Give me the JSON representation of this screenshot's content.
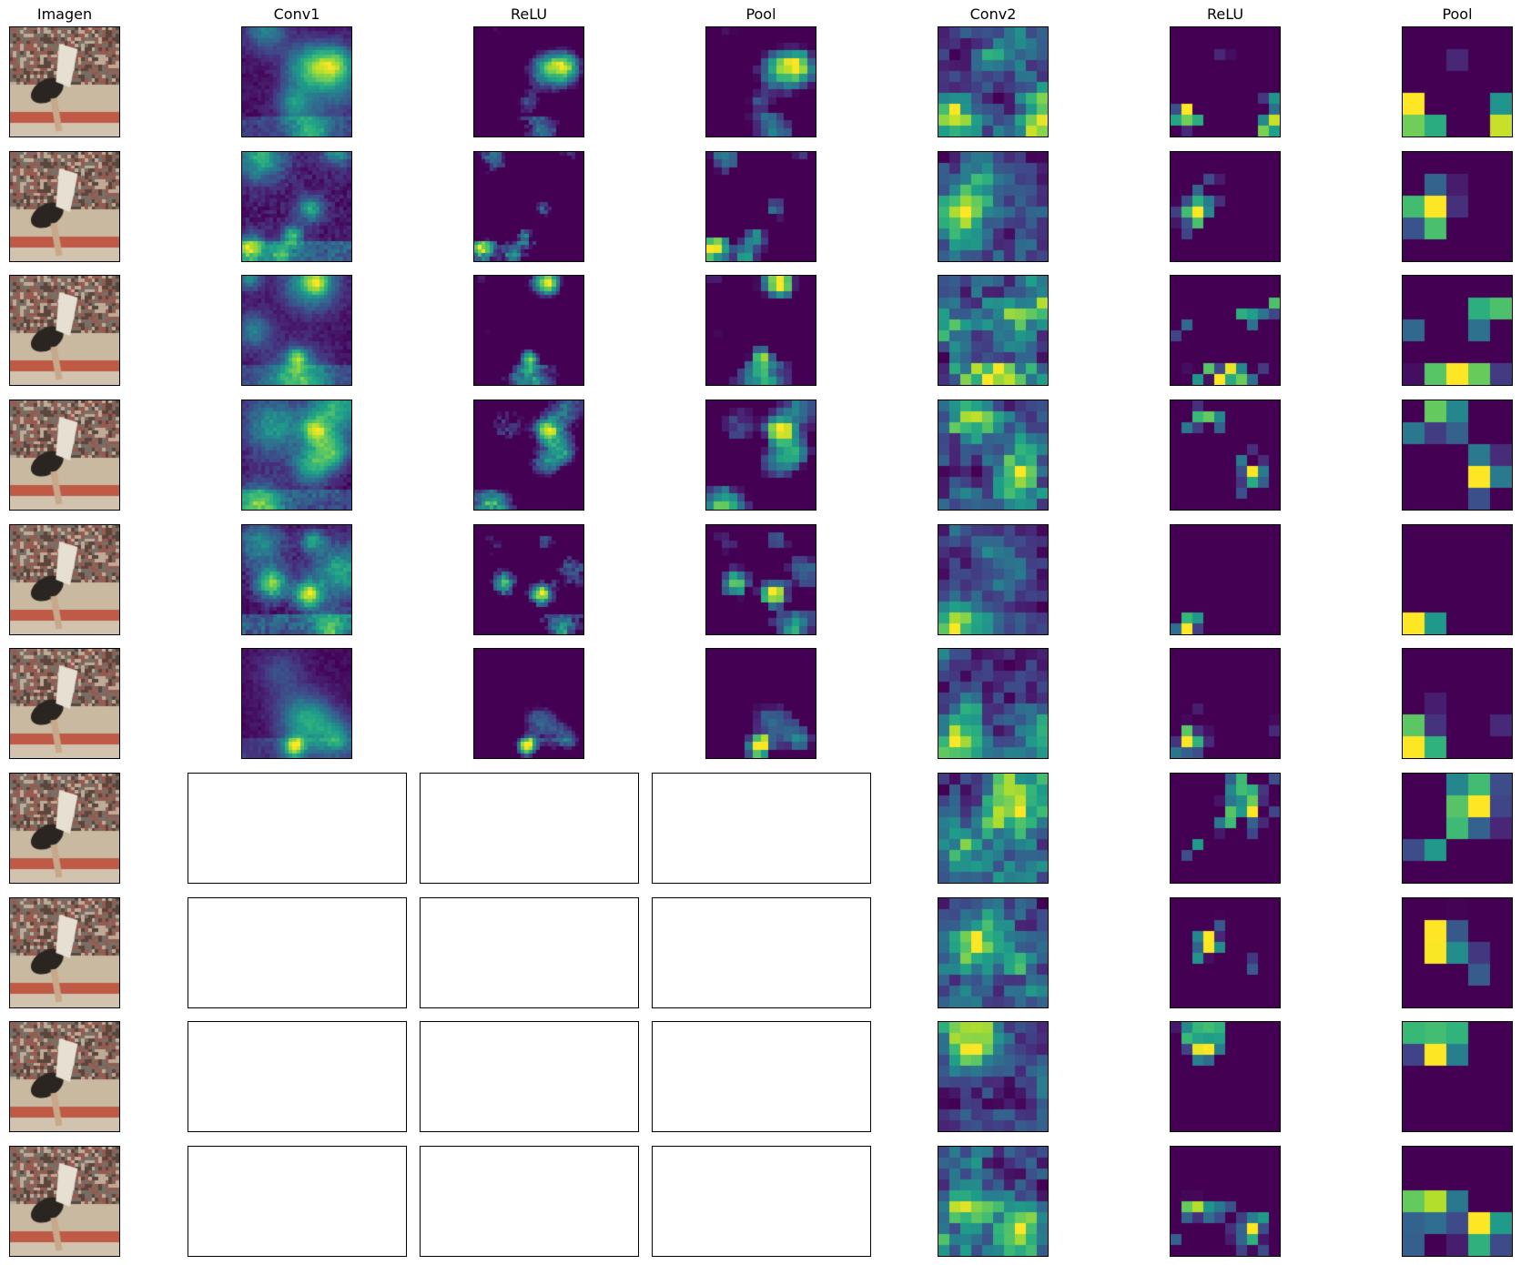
{
  "columns": [
    {
      "title": "Imagen",
      "kind": "image"
    },
    {
      "title": "Conv1",
      "kind": "map_fine",
      "channels": 6
    },
    {
      "title": "ReLU",
      "kind": "relu_fine",
      "channels": 6
    },
    {
      "title": "Pool",
      "kind": "pool_fine",
      "channels": 6
    },
    {
      "title": "Conv2",
      "kind": "map_coarse",
      "channels": 10
    },
    {
      "title": "ReLU",
      "kind": "relu_coarse",
      "channels": 10
    },
    {
      "title": "Pool",
      "kind": "pool_coarse",
      "channels": 10
    }
  ],
  "rows": 10,
  "colormap": "viridis",
  "colors": {
    "frame": "#000000",
    "background": "#ffffff"
  }
}
